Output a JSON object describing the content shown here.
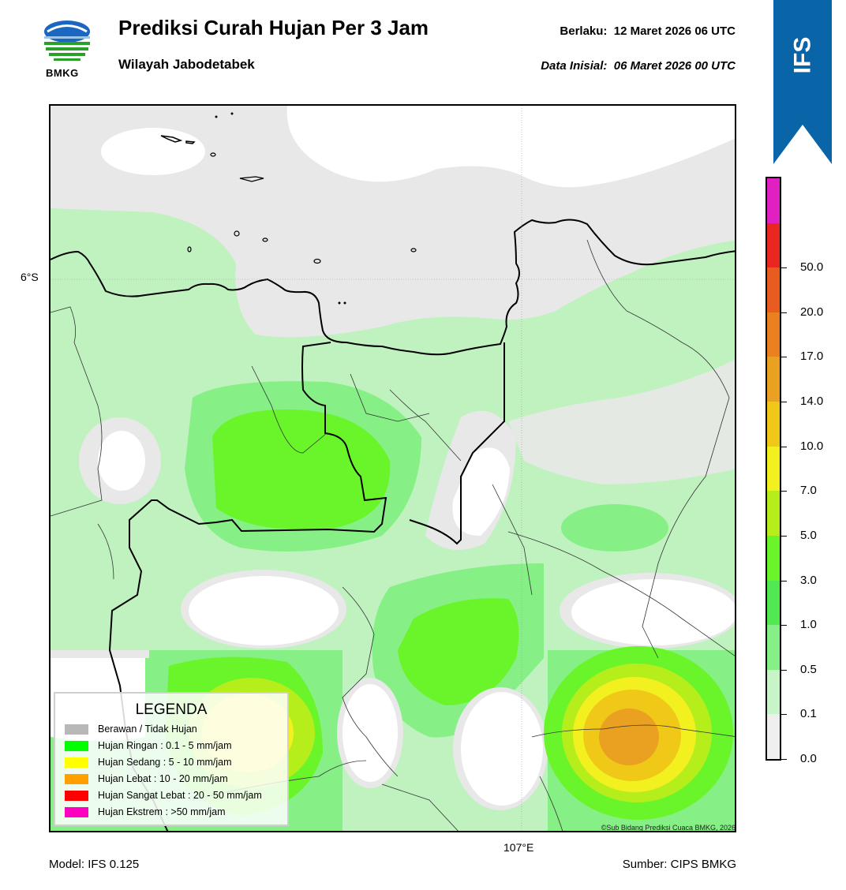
{
  "header": {
    "logo_text": "BMKG",
    "title": "Prediksi Curah Hujan Per 3 Jam",
    "subtitle": "Wilayah Jabodetabek",
    "valid": "Berlaku:  12 Maret 2026 06 UTC",
    "initial": "Data Inisial:  06 Maret 2026 00 UTC",
    "model_badge": "IFS"
  },
  "map": {
    "lat_label": "6°S",
    "lon_label": "107°E",
    "copyright": "©Sub Bidang Prediksi Cuaca BMKG, 2026",
    "colors": {
      "cloudy": "#e8e8e8",
      "clear": "#ffffff",
      "light1": "#bff2bf",
      "light2": "#86ef86",
      "light3": "#6af52a",
      "moderate1": "#b6ee1c",
      "moderate2": "#f3f020",
      "heavy1": "#f0c818",
      "heavy2": "#eaa020"
    }
  },
  "legend": {
    "title": "LEGENDA",
    "items": [
      {
        "label": "Berawan / Tidak Hujan",
        "color": "#b8b8b8"
      },
      {
        "label": "Hujan Ringan : 0.1 - 5 mm/jam",
        "color": "#00ff00"
      },
      {
        "label": "Hujan Sedang : 5 - 10 mm/jam",
        "color": "#ffff00"
      },
      {
        "label": "Hujan Lebat : 10 - 20 mm/jam",
        "color": "#ffa000"
      },
      {
        "label": "Hujan Sangat Lebat : 20 - 50 mm/jam",
        "color": "#ff0000"
      },
      {
        "label": "Hujan Ekstrem : >50 mm/jam",
        "color": "#ff00c0"
      }
    ]
  },
  "colorbar": {
    "ticks": [
      "0.0",
      "0.1",
      "0.5",
      "1.0",
      "3.0",
      "5.0",
      "7.0",
      "10.0",
      "14.0",
      "17.0",
      "20.0",
      "50.0"
    ],
    "colors": [
      "#efefef",
      "#c8f5c8",
      "#86ef86",
      "#52e852",
      "#6af52a",
      "#b6ee1c",
      "#f3f020",
      "#f0c818",
      "#eaa020",
      "#ea8020",
      "#e85c20",
      "#e82820",
      "#e020c0"
    ]
  },
  "footer": {
    "model": "Model: IFS 0.125",
    "source": "Sumber: CIPS BMKG"
  }
}
